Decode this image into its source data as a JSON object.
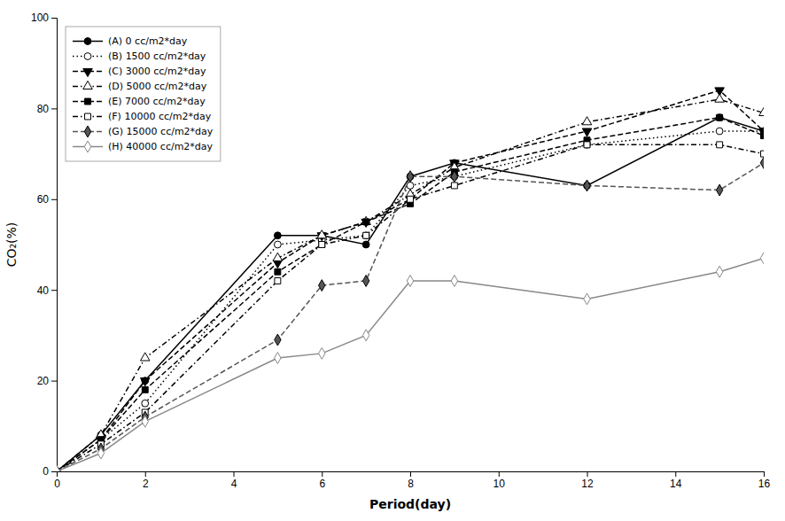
{
  "chart_data": {
    "type": "line",
    "xlabel": "Period(day)",
    "ylabel": "CO₂(%)",
    "x": [
      0,
      1,
      2,
      5,
      6,
      7,
      8,
      9,
      12,
      15,
      16
    ],
    "xlim": [
      0,
      16
    ],
    "ylim": [
      0,
      100
    ],
    "xticks": [
      0,
      2,
      4,
      6,
      8,
      10,
      12,
      14,
      16
    ],
    "yticks": [
      0,
      20,
      40,
      60,
      80,
      100
    ],
    "grid": false,
    "legend": "upper-left",
    "series": [
      {
        "name": "(A) 0 cc/m2*day",
        "color": "#000000",
        "line_style": "solid",
        "marker": "circle",
        "values": [
          0,
          8,
          20,
          52,
          52,
          50,
          65,
          68,
          63,
          78,
          75
        ]
      },
      {
        "name": "(B) 1500 cc/m2*day",
        "color": "#000000",
        "line_style": "dotted",
        "marker": "circle-open",
        "values": [
          0,
          7,
          15,
          50,
          51,
          52,
          63,
          65,
          72,
          75,
          75
        ]
      },
      {
        "name": "(C) 3000 cc/m2*day",
        "color": "#000000",
        "line_style": "dashed",
        "marker": "triangle-down",
        "values": [
          0,
          7,
          20,
          46,
          52,
          55,
          60,
          68,
          75,
          84,
          75
        ]
      },
      {
        "name": "(D) 5000 cc/m2*day",
        "color": "#000000",
        "line_style": "dashdot",
        "marker": "triangle-up-open",
        "values": [
          0,
          8,
          25,
          47,
          52,
          55,
          61,
          67,
          77,
          82,
          79
        ]
      },
      {
        "name": "(E) 7000 cc/m2*day",
        "color": "#000000",
        "line_style": "dashed",
        "marker": "square",
        "values": [
          0,
          7,
          18,
          44,
          50,
          55,
          59,
          66,
          73,
          78,
          74
        ]
      },
      {
        "name": "(F) 10000 cc/m2*day",
        "color": "#000000",
        "line_style": "dashdot",
        "marker": "square-open",
        "values": [
          0,
          6,
          13,
          42,
          50,
          52,
          60,
          63,
          72,
          72,
          70
        ]
      },
      {
        "name": "(G) 15000 cc/m2*day",
        "color": "#555555",
        "line_style": "dashed",
        "marker": "diamond",
        "values": [
          0,
          5,
          12,
          29,
          41,
          42,
          65,
          65,
          63,
          62,
          68
        ]
      },
      {
        "name": "(H) 40000 cc/m2*day",
        "color": "#888888",
        "line_style": "solid",
        "marker": "diamond-open",
        "values": [
          0,
          4,
          11,
          25,
          26,
          30,
          42,
          42,
          38,
          44,
          47
        ]
      }
    ]
  }
}
